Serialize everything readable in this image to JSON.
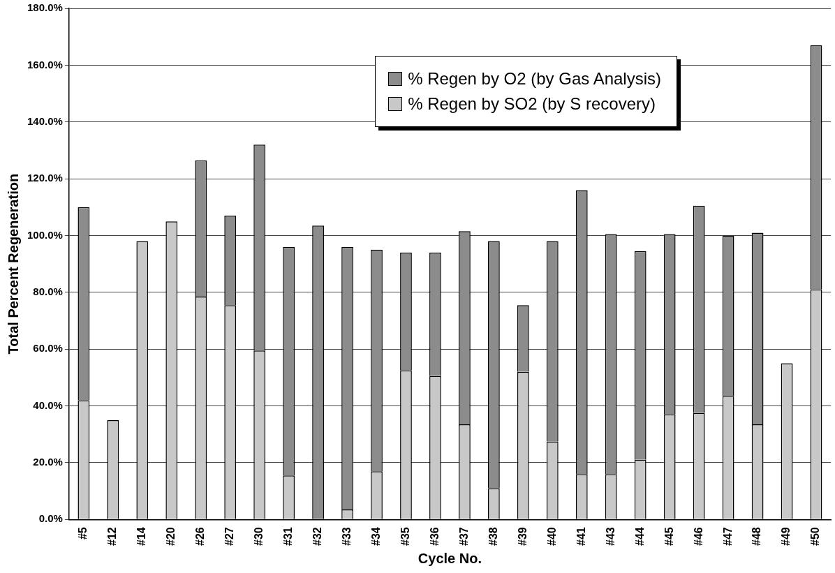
{
  "chart_data": {
    "type": "bar",
    "stacked": true,
    "xlabel": "Cycle No.",
    "ylabel": "Total Percent Regeneration",
    "categories": [
      "#5",
      "#12",
      "#14",
      "#20",
      "#26",
      "#27",
      "#30",
      "#31",
      "#32",
      "#33",
      "#34",
      "#35",
      "#36",
      "#37",
      "#38",
      "#39",
      "#40",
      "#41",
      "#43",
      "#44",
      "#45",
      "#46",
      "#47",
      "#48",
      "#49",
      "#50"
    ],
    "series": [
      {
        "name": "% Regen by SO2 (by S recovery)",
        "color": "#c8c8c8",
        "values": [
          42,
          35,
          98,
          105,
          78.5,
          75.5,
          59.5,
          15.5,
          null,
          3.5,
          17,
          52.5,
          50.5,
          33.5,
          11,
          52,
          27.5,
          16,
          16,
          21,
          37,
          37.5,
          43.5,
          33.5,
          55,
          81
        ]
      },
      {
        "name": "% Regen by O2 (by Gas Analysis)",
        "color": "#8c8c8c",
        "values": [
          68,
          null,
          null,
          null,
          48,
          31.5,
          72.5,
          80.5,
          103.5,
          92.5,
          78,
          41.5,
          43.5,
          68,
          87,
          23.5,
          70.5,
          100,
          84.5,
          73.5,
          63.5,
          73,
          56.5,
          67.5,
          null,
          86
        ]
      }
    ],
    "ylim": [
      0,
      180
    ],
    "yticks": [
      {
        "value": 0,
        "label": "0.0%"
      },
      {
        "value": 20,
        "label": "20.0%"
      },
      {
        "value": 40,
        "label": "40.0%"
      },
      {
        "value": 60,
        "label": "60.0%"
      },
      {
        "value": 80,
        "label": "80.0%"
      },
      {
        "value": 100,
        "label": "100.0%"
      },
      {
        "value": 120,
        "label": "120.0%"
      },
      {
        "value": 140,
        "label": "140.0%"
      },
      {
        "value": 160,
        "label": "160.0%"
      },
      {
        "value": 180,
        "label": "180.0%"
      }
    ],
    "grid": "y",
    "legend": "top right"
  }
}
